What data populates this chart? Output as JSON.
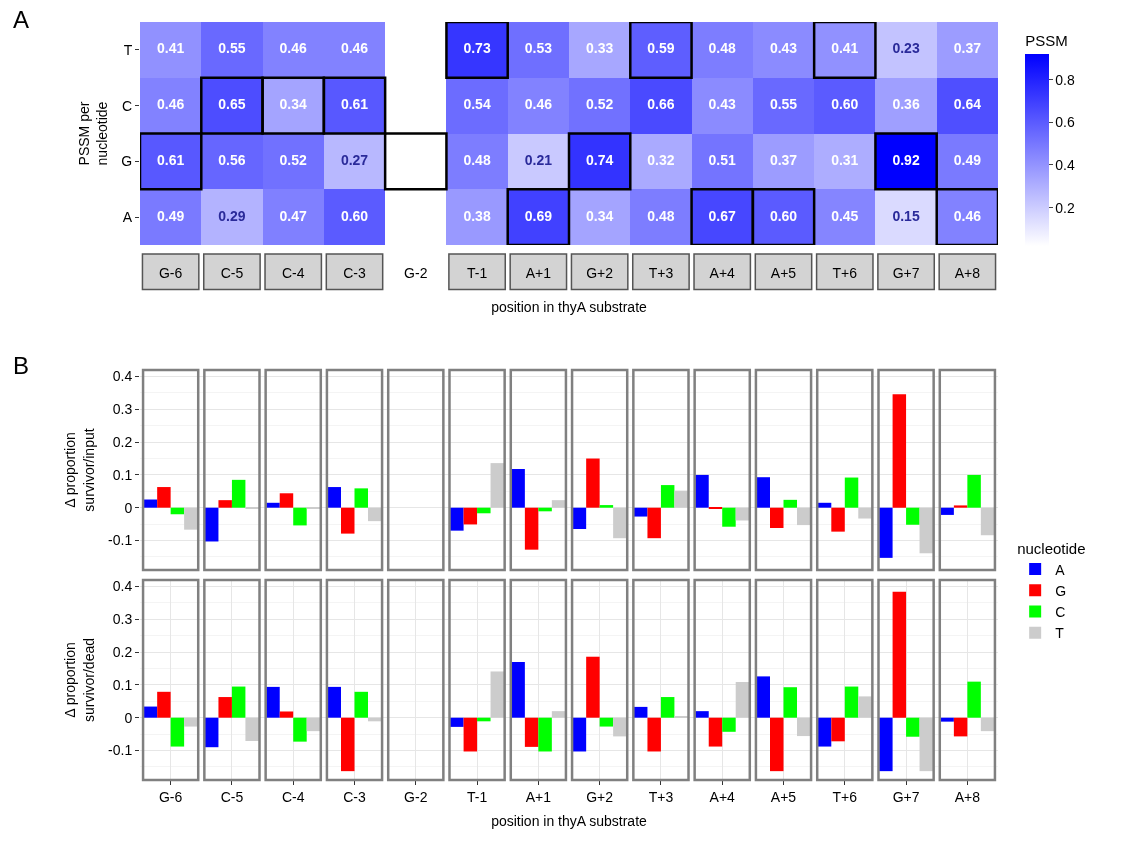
{
  "chart_data": [
    {
      "type": "heatmap",
      "annotations": [
        "A"
      ],
      "xlabel": "position in thyA substrate",
      "ylabel": "PSSM per\nnucleotide",
      "clabel": "PSSM",
      "categories": [
        "G-6",
        "C-5",
        "C-4",
        "C-3",
        "G-2",
        "T-1",
        "A+1",
        "G+2",
        "T+3",
        "A+4",
        "A+5",
        "T+6",
        "G+7",
        "A+8"
      ],
      "y_categories": [
        "T",
        "C",
        "G",
        "A"
      ],
      "cells": [
        [
          0.41,
          0.55,
          0.46,
          0.46,
          null,
          0.73,
          0.53,
          0.33,
          0.59,
          0.48,
          0.43,
          0.41,
          0.23,
          0.37
        ],
        [
          0.46,
          0.65,
          0.34,
          0.61,
          null,
          0.54,
          0.46,
          0.52,
          0.66,
          0.43,
          0.55,
          0.6,
          0.36,
          0.64
        ],
        [
          0.61,
          0.56,
          0.52,
          0.27,
          null,
          0.48,
          0.21,
          0.74,
          0.32,
          0.51,
          0.37,
          0.31,
          0.92,
          0.49
        ],
        [
          0.49,
          0.29,
          0.47,
          0.6,
          null,
          0.38,
          0.69,
          0.34,
          0.48,
          0.67,
          0.6,
          0.45,
          0.15,
          0.46
        ]
      ],
      "cell_labels": [
        [
          "0.41",
          "0.55",
          "0.46",
          "0.46",
          null,
          "0.73",
          "0.53",
          "0.33",
          "0.59",
          "0.48",
          "0.43",
          "0.41",
          "0.23",
          "0.37"
        ],
        [
          "0.46",
          "0.65",
          "0.34",
          "0.61",
          null,
          "0.54",
          "0.46",
          "0.52",
          "0.66",
          "0.43",
          "0.55",
          "0.60",
          "0.36",
          "0.64"
        ],
        [
          "0.61",
          "0.56",
          "0.52",
          "0.27",
          null,
          "0.48",
          "0.21",
          "0.74",
          "0.32",
          "0.51",
          "0.37",
          "0.31",
          "0.92",
          "0.49"
        ],
        [
          "0.49",
          "0.29",
          "0.47",
          "0.60",
          null,
          "0.38",
          "0.69",
          "0.34",
          "0.48",
          "0.67",
          "0.60",
          "0.45",
          "0.15",
          "0.46"
        ]
      ],
      "clim": [
        0.02,
        0.92
      ],
      "cticks": [
        0.2,
        0.4,
        0.6,
        0.8
      ]
    },
    {
      "type": "bar",
      "annotations": [
        "B"
      ],
      "ylabel": "Δ proportion\nsurvivor/input",
      "tick_labels": "y",
      "grid": true,
      "legend": false,
      "categories": [
        null,
        null,
        null,
        null,
        null,
        null,
        null,
        null,
        null,
        null,
        null,
        null,
        null,
        null
      ],
      "ylim": [
        -0.19,
        0.42
      ],
      "yticks": [
        -0.1,
        0,
        0.1,
        0.2,
        0.3,
        0.4
      ],
      "series": [
        {
          "color": "#0000ff",
          "values": [
            0.025,
            -0.103,
            0.015,
            0.063,
            0,
            -0.07,
            0.118,
            -0.065,
            -0.027,
            0.1,
            0.093,
            0.015,
            -0.153,
            -0.022
          ]
        },
        {
          "color": "#ff0000",
          "values": [
            0.063,
            0.023,
            0.044,
            -0.079,
            0,
            -0.051,
            -0.128,
            0.15,
            -0.093,
            -0.001,
            -0.062,
            -0.073,
            0.346,
            0.007
          ]
        },
        {
          "color": "#00ff00",
          "values": [
            -0.02,
            0.085,
            -0.054,
            0.059,
            0,
            -0.017,
            -0.011,
            0.008,
            0.069,
            -0.058,
            0.024,
            0.092,
            -0.052,
            0.1
          ]
        },
        {
          "color": "#cccccc",
          "values": [
            -0.067,
            -0.003,
            -0.003,
            -0.041,
            0,
            0.136,
            0.023,
            -0.093,
            0.052,
            -0.039,
            -0.053,
            -0.033,
            -0.139,
            -0.084
          ]
        }
      ]
    },
    {
      "type": "bar",
      "xlabel": "position in thyA substrate",
      "ylabel": "Δ proportion\nsurvivor/dead",
      "grid": true,
      "legend": "right",
      "legend_title": "nucleotide",
      "categories": [
        "G-6",
        "C-5",
        "C-4",
        "C-3",
        "G-2",
        "T-1",
        "A+1",
        "G+2",
        "T+3",
        "A+4",
        "A+5",
        "T+6",
        "G+7",
        "A+8"
      ],
      "ylim": [
        -0.19,
        0.42
      ],
      "yticks": [
        -0.1,
        0,
        0.1,
        0.2,
        0.3,
        0.4
      ],
      "series": [
        {
          "name": "A",
          "color": "#0000ff",
          "values": [
            0.034,
            -0.09,
            0.094,
            0.094,
            0,
            -0.028,
            0.17,
            -0.103,
            0.033,
            0.02,
            0.126,
            -0.088,
            -0.163,
            -0.012
          ]
        },
        {
          "name": "G",
          "color": "#ff0000",
          "values": [
            0.079,
            0.063,
            0.019,
            -0.163,
            0,
            -0.103,
            -0.089,
            0.186,
            -0.103,
            -0.088,
            -0.163,
            -0.072,
            0.384,
            -0.057
          ]
        },
        {
          "name": "C",
          "color": "#00ff00",
          "values": [
            -0.088,
            0.095,
            -0.073,
            0.079,
            0,
            -0.011,
            -0.103,
            -0.027,
            0.063,
            -0.043,
            0.093,
            0.095,
            -0.058,
            0.11
          ]
        },
        {
          "name": "T",
          "color": "#cccccc",
          "values": [
            -0.027,
            -0.071,
            -0.041,
            -0.011,
            0,
            0.141,
            0.02,
            -0.057,
            0.004,
            0.109,
            -0.056,
            0.065,
            -0.163,
            -0.041
          ]
        }
      ]
    }
  ]
}
